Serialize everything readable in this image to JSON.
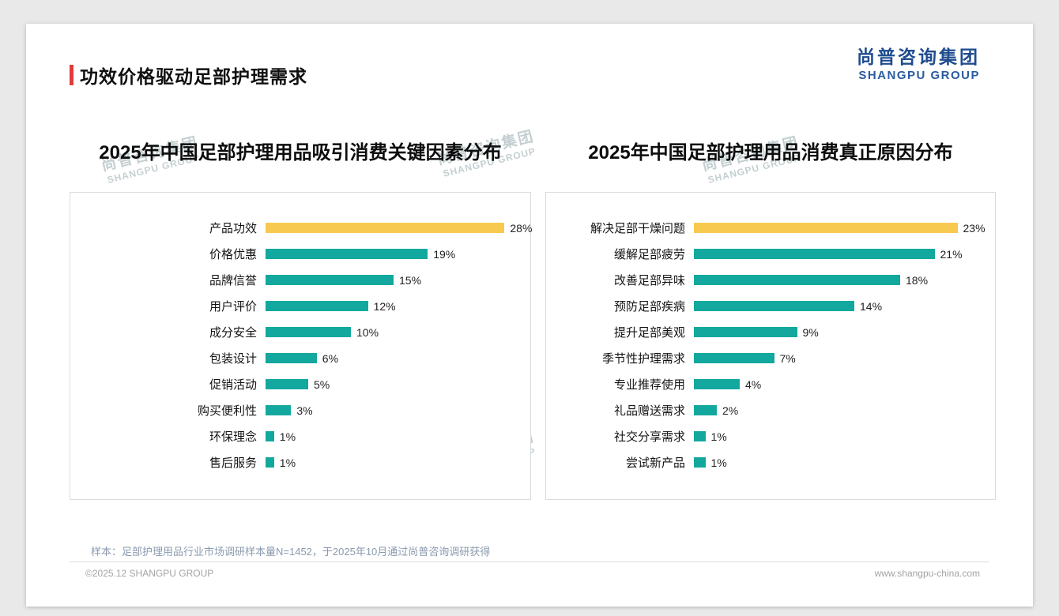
{
  "page": {
    "title": "功效价格驱动足部护理需求",
    "logo": {
      "cn": "尚普咨询集团",
      "en": "SHANGPU GROUP"
    },
    "watermark": {
      "cn": "尚普咨询集团",
      "en": "SHANGPU GROUP"
    },
    "sample_note": "样本：足部护理用品行业市场调研样本量N=1452，于2025年10月通过尚普咨询调研获得",
    "footer_left": "©2025.12 SHANGPU GROUP",
    "footer_right": "www.shangpu-china.com"
  },
  "colors": {
    "accent_red": "#e23b3b",
    "brand_blue": "#1f4c8f",
    "bar_teal": "#12a89e",
    "bar_gold": "#f8c94f"
  },
  "chart_data": [
    {
      "type": "bar",
      "orientation": "horizontal",
      "title": "2025年中国足部护理用品吸引消费关键因素分布",
      "categories": [
        "产品功效",
        "价格优惠",
        "品牌信誉",
        "用户评价",
        "成分安全",
        "包装设计",
        "促销活动",
        "购买便利性",
        "环保理念",
        "售后服务"
      ],
      "values": [
        28,
        19,
        15,
        12,
        10,
        6,
        5,
        3,
        1,
        1
      ],
      "unit": "%",
      "xlim": [
        0,
        30
      ],
      "highlight_index": 0,
      "legend": "none",
      "grid": "off"
    },
    {
      "type": "bar",
      "orientation": "horizontal",
      "title": "2025年中国足部护理用品消费真正原因分布",
      "categories": [
        "解决足部干燥问题",
        "缓解足部疲劳",
        "改善足部异味",
        "预防足部疾病",
        "提升足部美观",
        "季节性护理需求",
        "专业推荐使用",
        "礼品赠送需求",
        "社交分享需求",
        "尝试新产品"
      ],
      "values": [
        23,
        21,
        18,
        14,
        9,
        7,
        4,
        2,
        1,
        1
      ],
      "unit": "%",
      "xlim": [
        0,
        25
      ],
      "highlight_index": 0,
      "legend": "none",
      "grid": "off"
    }
  ]
}
